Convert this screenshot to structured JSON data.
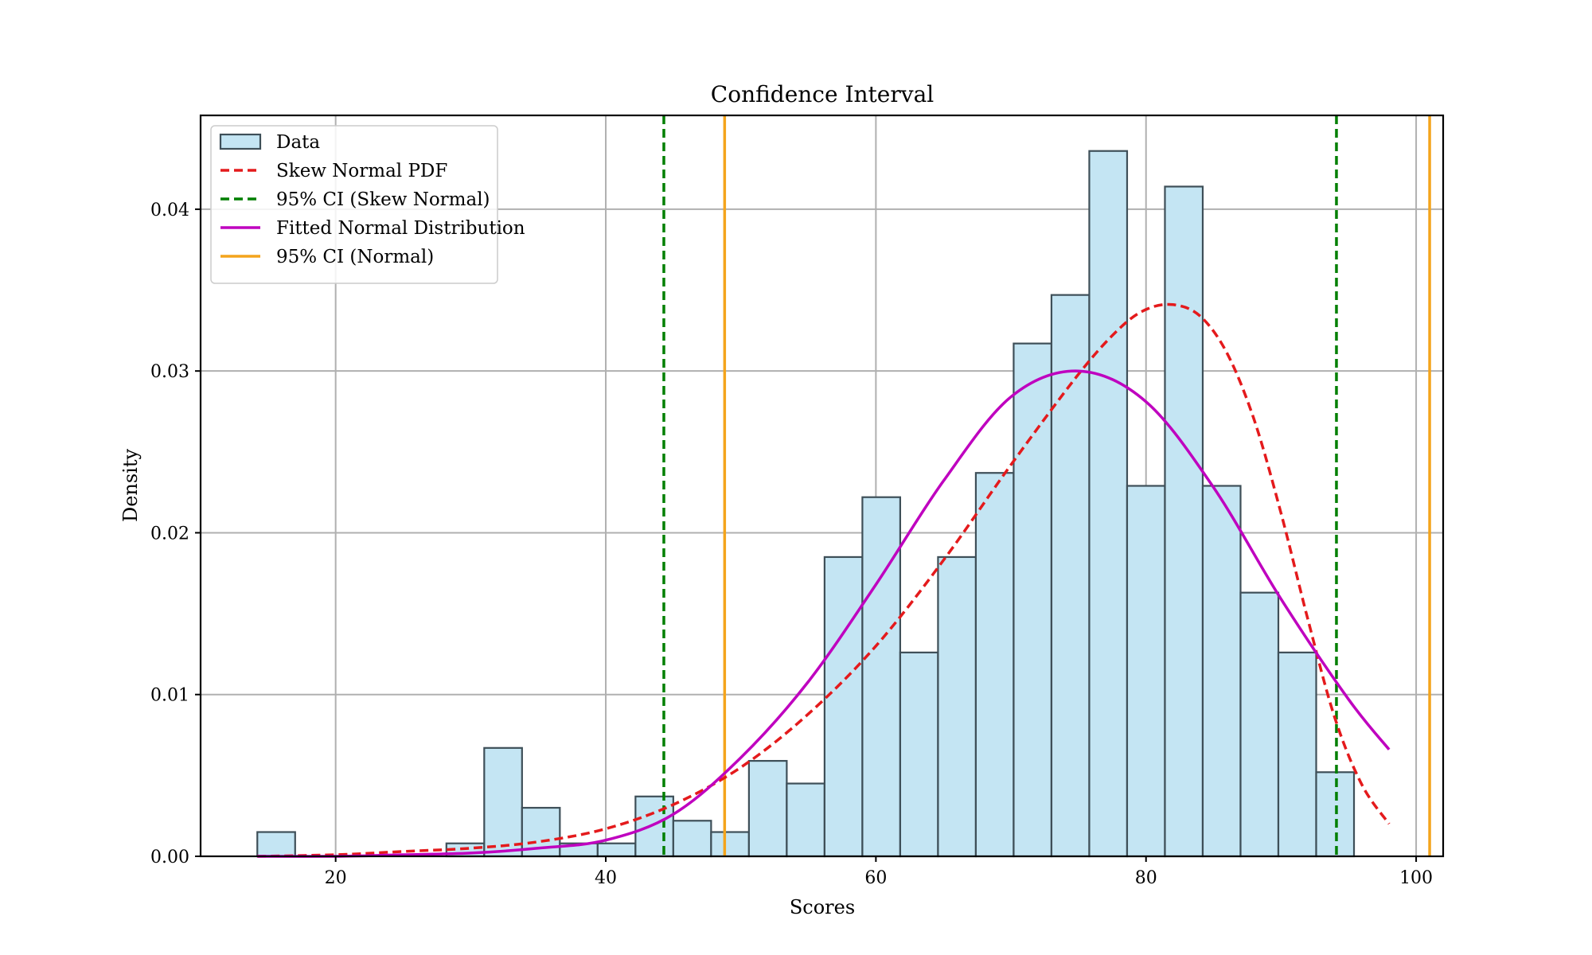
{
  "chart_data": {
    "type": "bar",
    "title": "Confidence Interval",
    "xlabel": "Scores",
    "ylabel": "Density",
    "xlim": [
      10,
      102
    ],
    "ylim": [
      0,
      0.0458
    ],
    "x_ticks": [
      20,
      40,
      60,
      80,
      100
    ],
    "x_tick_labels": [
      "20",
      "40",
      "60",
      "80",
      "100"
    ],
    "y_ticks": [
      0.0,
      0.01,
      0.02,
      0.03,
      0.04
    ],
    "y_tick_labels": [
      "0.00",
      "0.01",
      "0.02",
      "0.03",
      "0.04"
    ],
    "grid": true,
    "histogram": {
      "name": "Data",
      "bin_edges": [
        14.2,
        17.0,
        19.8,
        22.6,
        25.4,
        28.2,
        31.0,
        33.8,
        36.6,
        39.4,
        42.2,
        45.0,
        47.8,
        50.6,
        53.4,
        56.2,
        59.0,
        61.8,
        64.6,
        67.4,
        70.2,
        73.0,
        75.8,
        78.6,
        81.4,
        84.2,
        87.0,
        89.8,
        92.6,
        95.4,
        98.2
      ],
      "densities": [
        0.0015,
        0.0,
        0.0,
        0.0,
        0.0,
        0.0008,
        0.0067,
        0.003,
        0.0008,
        0.0008,
        0.0037,
        0.0022,
        0.0015,
        0.0059,
        0.0045,
        0.0185,
        0.0222,
        0.0126,
        0.0185,
        0.0237,
        0.0317,
        0.0347,
        0.0436,
        0.0229,
        0.0414,
        0.0229,
        0.0163,
        0.0126,
        0.0052,
        0.0
      ]
    },
    "series": [
      {
        "name": "Skew Normal PDF",
        "style": "dashed",
        "color": "#e41a1c",
        "x": [
          14.2,
          20,
          25,
          30,
          35,
          40,
          45,
          50,
          55,
          60,
          65,
          70,
          75,
          78,
          80,
          82,
          84,
          86,
          88,
          90,
          92,
          94,
          96,
          98
        ],
        "y": [
          0.0,
          0.0001,
          0.0003,
          0.0005,
          0.0009,
          0.0017,
          0.0032,
          0.0055,
          0.0088,
          0.013,
          0.0183,
          0.0242,
          0.0298,
          0.0326,
          0.0338,
          0.0341,
          0.0334,
          0.0311,
          0.027,
          0.0212,
          0.0146,
          0.0085,
          0.0044,
          0.002
        ]
      },
      {
        "name": "Fitted Normal Distribution",
        "style": "solid",
        "color": "#bf00bf",
        "x": [
          14.2,
          20,
          25,
          30,
          35,
          40,
          45,
          50,
          55,
          60,
          65,
          70,
          75,
          80,
          85,
          90,
          95,
          98
        ],
        "y": [
          0.0,
          0.0,
          0.0001,
          0.0002,
          0.0005,
          0.001,
          0.0026,
          0.0061,
          0.0108,
          0.0168,
          0.0232,
          0.0284,
          0.03,
          0.0281,
          0.0228,
          0.0159,
          0.0097,
          0.0066
        ]
      }
    ],
    "vlines": [
      {
        "name": "95% CI (Skew Normal)",
        "style": "dashed",
        "color": "#007f00",
        "x": [
          44.3,
          94.1
        ]
      },
      {
        "name": "95% CI (Normal)",
        "style": "solid",
        "color": "#f4a41c",
        "x": [
          48.8,
          101.0
        ]
      }
    ],
    "legend": {
      "position": "top-left",
      "entries": [
        {
          "label": "Data",
          "kind": "patch"
        },
        {
          "label": "Skew Normal PDF",
          "kind": "dashed",
          "color": "#e41a1c"
        },
        {
          "label": "95% CI (Skew Normal)",
          "kind": "dashed",
          "color": "#007f00"
        },
        {
          "label": "Fitted Normal Distribution",
          "kind": "solid",
          "color": "#bf00bf"
        },
        {
          "label": "95% CI (Normal)",
          "kind": "solid",
          "color": "#f4a41c"
        }
      ]
    }
  }
}
